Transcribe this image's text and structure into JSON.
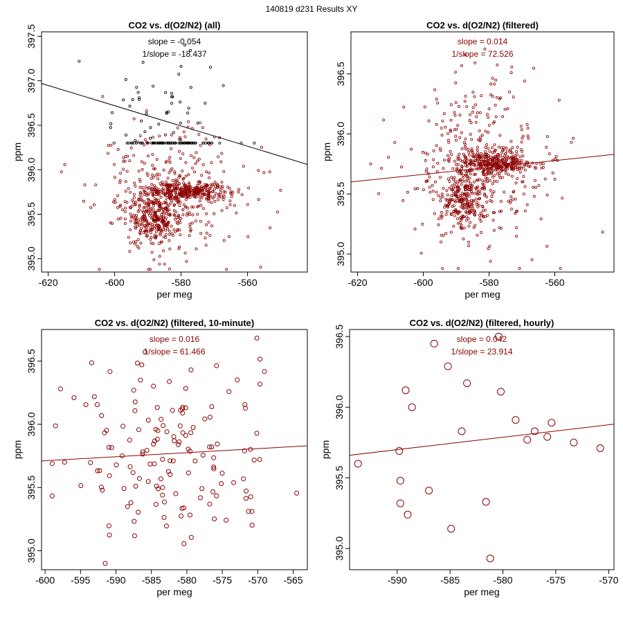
{
  "figure_title": "140819   d231   Results XY",
  "colors": {
    "black": "#000000",
    "red": "#8b0000"
  },
  "chart_data": [
    {
      "type": "scatter",
      "title": "CO2 vs. d(O2/N2) (all)",
      "xlabel": "per meg",
      "ylabel": "ppm",
      "xlim": [
        -622,
        -542
      ],
      "ylim": [
        394.85,
        397.55
      ],
      "xticks": [
        -620,
        -600,
        -580,
        -560
      ],
      "yticks": [
        395.0,
        395.5,
        396.0,
        396.5,
        397.0,
        397.5
      ],
      "ytick_labels": [
        "395.0",
        "395.5",
        "396.0",
        "396.5",
        "397.0",
        "397.5"
      ],
      "annotation": {
        "slope": "slope = -0.054",
        "inverse": "1/slope = -18.437"
      },
      "fit": {
        "x": [
          -622,
          -542
        ],
        "y": [
          396.97,
          396.06
        ]
      },
      "series": [
        {
          "name": "all",
          "color": "#000000",
          "marker_r": 1.6,
          "cluster": true,
          "count": 130,
          "seed": 7,
          "x_mean": -588,
          "x_sd": 8,
          "y_mean": 396.65,
          "y_sd": 0.3,
          "y_min": 396.3,
          "y_max": 397.4
        },
        {
          "name": "filtered",
          "color": "#8b0000",
          "marker_r": 1.6,
          "cluster": true,
          "count": 900,
          "seed": 11,
          "x_mean": -584,
          "x_sd": 11,
          "y_mean": 395.72,
          "y_sd": 0.38,
          "y_min": 394.88,
          "y_max": 396.85
        }
      ]
    },
    {
      "type": "scatter",
      "title": "CO2 vs. d(O2/N2) (filtered)",
      "xlabel": "per meg",
      "ylabel": "ppm",
      "xlim": [
        -622,
        -542
      ],
      "ylim": [
        394.85,
        396.85
      ],
      "xticks": [
        -620,
        -600,
        -580,
        -560
      ],
      "yticks": [
        395.0,
        395.5,
        396.0,
        396.5
      ],
      "ytick_labels": [
        "395.0",
        "395.5",
        "396.0",
        "396.5"
      ],
      "annotation": {
        "slope": "slope = 0.014",
        "inverse": "1/slope = 72.526"
      },
      "fit": {
        "x": [
          -622,
          -542
        ],
        "y": [
          395.6,
          395.83
        ]
      },
      "series": [
        {
          "name": "filtered",
          "color": "#8b0000",
          "marker_r": 1.6,
          "cluster": true,
          "count": 900,
          "seed": 23,
          "x_mean": -583,
          "x_sd": 11,
          "y_mean": 395.72,
          "y_sd": 0.38,
          "y_min": 394.88,
          "y_max": 396.8
        }
      ]
    },
    {
      "type": "scatter",
      "title": "CO2 vs. d(O2/N2) (filtered, 10-minute)",
      "xlabel": "per meg",
      "ylabel": "ppm",
      "xlim": [
        -600.5,
        -563
      ],
      "ylim": [
        394.85,
        396.75
      ],
      "xticks": [
        -600,
        -595,
        -590,
        -585,
        -580,
        -575,
        -570,
        -565
      ],
      "yticks": [
        395.0,
        395.5,
        396.0,
        396.5
      ],
      "ytick_labels": [
        "395.0",
        "395.5",
        "396.0",
        "396.5"
      ],
      "annotation": {
        "slope": "slope = 0.016",
        "inverse": "1/slope = 61.466"
      },
      "fit": {
        "x": [
          -600.5,
          -563
        ],
        "y": [
          395.71,
          395.83
        ]
      },
      "series": [
        {
          "name": "10-minute",
          "color": "#8b0000",
          "marker_r": 3,
          "cluster": false,
          "count": 150,
          "seed": 31,
          "x_mean": -583,
          "x_sd": 8,
          "y_mean": 395.75,
          "y_sd": 0.38,
          "x_min": -599,
          "x_max": -564.5,
          "y_min": 394.9,
          "y_max": 396.7
        }
      ]
    },
    {
      "type": "scatter",
      "title": "CO2 vs. d(O2/N2) (filtered, hourly)",
      "xlabel": "per meg",
      "ylabel": "ppm",
      "xlim": [
        -594.5,
        -569.5
      ],
      "ylim": [
        394.85,
        396.55
      ],
      "xticks": [
        -590,
        -585,
        -580,
        -575,
        -570
      ],
      "yticks": [
        395.0,
        395.5,
        396.0,
        396.5
      ],
      "ytick_labels": [
        "395.0",
        "395.5",
        "396.0",
        "396.5"
      ],
      "annotation": {
        "slope": "slope = 0.042",
        "inverse": "1/slope = 23.914"
      },
      "fit": {
        "x": [
          -594.5,
          -569.5
        ],
        "y": [
          395.66,
          395.88
        ]
      },
      "series": [
        {
          "name": "hourly",
          "color": "#8b0000",
          "marker_r": 5,
          "cluster": false,
          "x": [
            -593.7,
            -589.8,
            -589.7,
            -589.7,
            -589.2,
            -589.0,
            -588.6,
            -587.0,
            -586.5,
            -585.2,
            -584.9,
            -583.9,
            -583.4,
            -581.6,
            -581.2,
            -580.4,
            -580.2,
            -578.8,
            -577.7,
            -577.0,
            -575.8,
            -575.4,
            -573.3,
            -570.8
          ],
          "y": [
            395.6,
            395.69,
            395.48,
            395.32,
            396.12,
            395.24,
            396.0,
            395.41,
            396.45,
            396.29,
            395.14,
            395.83,
            396.17,
            395.33,
            394.93,
            396.5,
            396.11,
            395.91,
            395.77,
            395.83,
            395.79,
            395.89,
            395.75,
            395.71
          ]
        }
      ]
    }
  ]
}
